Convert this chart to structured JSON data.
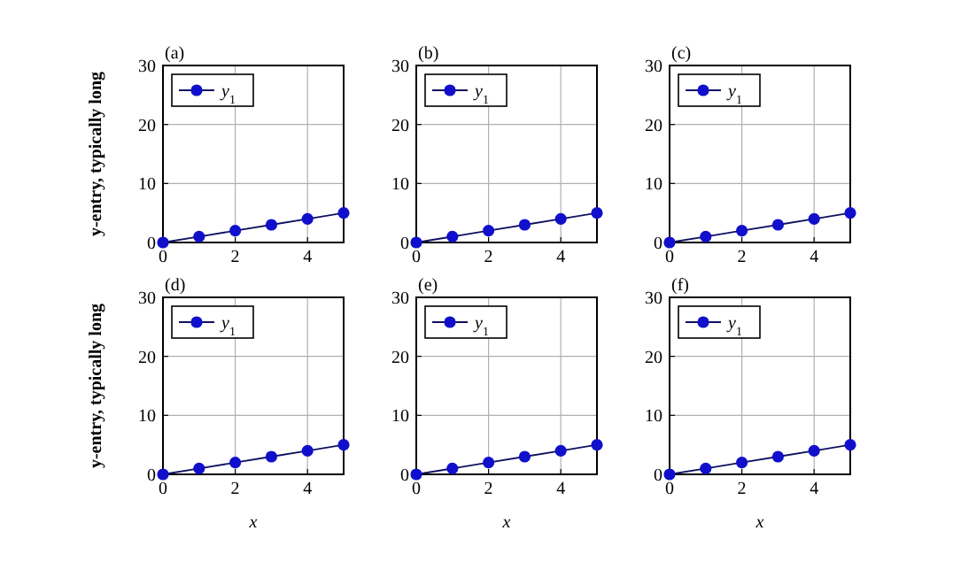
{
  "chart_data": [
    {
      "type": "line",
      "title": "(a)",
      "ylabel": "y-entry, typically long",
      "x": [
        0,
        1,
        2,
        3,
        4,
        5
      ],
      "series": [
        {
          "name": "y$_{1}$",
          "color": "#1010cc",
          "values": [
            0,
            1,
            2,
            3,
            4,
            5
          ]
        }
      ],
      "xlim": [
        0,
        5
      ],
      "ylim": [
        0,
        30
      ],
      "xticks": [
        0,
        2,
        4
      ],
      "yticks": [
        0,
        10,
        20,
        30
      ],
      "grid": true,
      "legend": "top left",
      "marker": "circle"
    },
    {
      "type": "line",
      "title": "(b)",
      "x": [
        0,
        1,
        2,
        3,
        4,
        5
      ],
      "series": [
        {
          "name": "y$_{1}$",
          "color": "#1010cc",
          "values": [
            0,
            1,
            2,
            3,
            4,
            5
          ]
        }
      ],
      "xlim": [
        0,
        5
      ],
      "ylim": [
        0,
        30
      ],
      "xticks": [
        0,
        2,
        4
      ],
      "yticks": [
        0,
        10,
        20,
        30
      ],
      "grid": true,
      "legend": "top left",
      "marker": "circle"
    },
    {
      "type": "line",
      "title": "(c)",
      "x": [
        0,
        1,
        2,
        3,
        4,
        5
      ],
      "series": [
        {
          "name": "y$_{1}$",
          "color": "#1010cc",
          "values": [
            0,
            1,
            2,
            3,
            4,
            5
          ]
        }
      ],
      "xlim": [
        0,
        5
      ],
      "ylim": [
        0,
        30
      ],
      "xticks": [
        0,
        2,
        4
      ],
      "yticks": [
        0,
        10,
        20,
        30
      ],
      "grid": true,
      "legend": "top left",
      "marker": "circle"
    },
    {
      "type": "line",
      "title": "(d)",
      "ylabel": "y-entry, typically long",
      "xlabel": "x",
      "x": [
        0,
        1,
        2,
        3,
        4,
        5
      ],
      "series": [
        {
          "name": "y$_{1}$",
          "color": "#1010cc",
          "values": [
            0,
            1,
            2,
            3,
            4,
            5
          ]
        }
      ],
      "xlim": [
        0,
        5
      ],
      "ylim": [
        0,
        30
      ],
      "xticks": [
        0,
        2,
        4
      ],
      "yticks": [
        0,
        10,
        20,
        30
      ],
      "grid": true,
      "legend": "top left",
      "marker": "circle"
    },
    {
      "type": "line",
      "title": "(e)",
      "xlabel": "x",
      "x": [
        0,
        1,
        2,
        3,
        4,
        5
      ],
      "series": [
        {
          "name": "y$_{1}$",
          "color": "#1010cc",
          "values": [
            0,
            1,
            2,
            3,
            4,
            5
          ]
        }
      ],
      "xlim": [
        0,
        5
      ],
      "ylim": [
        0,
        30
      ],
      "xticks": [
        0,
        2,
        4
      ],
      "yticks": [
        0,
        10,
        20,
        30
      ],
      "grid": true,
      "legend": "top left",
      "marker": "circle"
    },
    {
      "type": "line",
      "title": "(f)",
      "xlabel": "x",
      "x": [
        0,
        1,
        2,
        3,
        4,
        5
      ],
      "series": [
        {
          "name": "y$_{1}$",
          "color": "#1010cc",
          "values": [
            0,
            1,
            2,
            3,
            4,
            5
          ]
        }
      ],
      "xlim": [
        0,
        5
      ],
      "ylim": [
        0,
        30
      ],
      "xticks": [
        0,
        2,
        4
      ],
      "yticks": [
        0,
        10,
        20,
        30
      ],
      "grid": true,
      "legend": "top left",
      "marker": "circle"
    }
  ]
}
